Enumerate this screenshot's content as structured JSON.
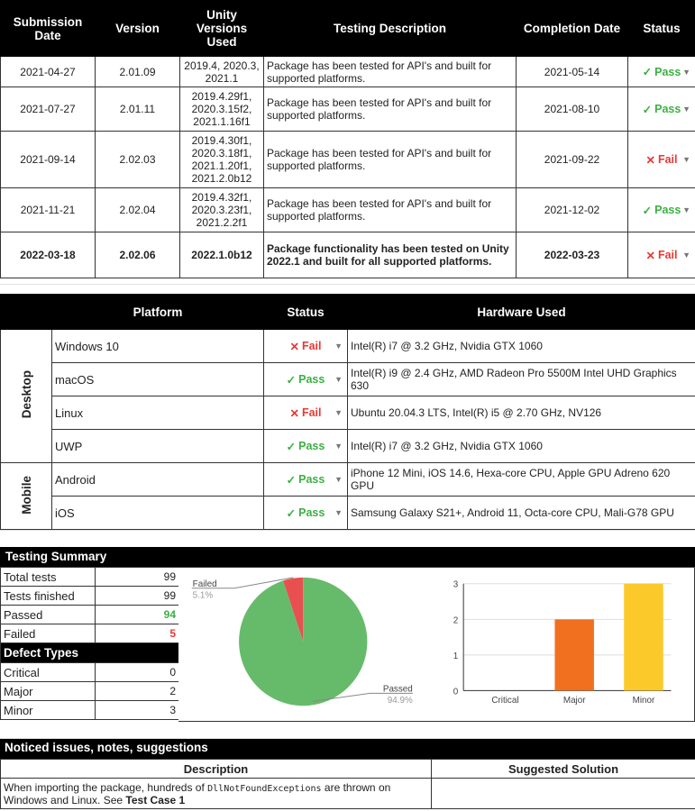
{
  "versions": {
    "headers": [
      "Submission Date",
      "Version",
      "Unity Versions Used",
      "Testing Description",
      "Completion Date",
      "Status"
    ],
    "rows": [
      {
        "submitted": "2021-04-27",
        "version": "2.01.09",
        "unity": "2019.4, 2020.3, 2021.1",
        "description": "Package has been tested for API's and built for supported platforms.",
        "completed": "2021-05-14",
        "status": "Pass"
      },
      {
        "submitted": "2021-07-27",
        "version": "2.01.11",
        "unity": "2019.4.29f1, 2020.3.15f2, 2021.1.16f1",
        "description": "Package has been tested for API's and built for supported platforms.",
        "completed": "2021-08-10",
        "status": "Pass"
      },
      {
        "submitted": "2021-09-14",
        "version": "2.02.03",
        "unity": "2019.4.30f1, 2020.3.18f1, 2021.1.20f1, 2021.2.0b12",
        "description": "Package has been tested for API's and built for supported platforms.",
        "completed": "2021-09-22",
        "status": "Fail"
      },
      {
        "submitted": "2021-11-21",
        "version": "2.02.04",
        "unity": "2019.4.32f1, 2020.3.23f1, 2021.2.2f1",
        "description": "Package has been tested for API's and built for supported platforms.",
        "completed": "2021-12-02",
        "status": "Pass"
      },
      {
        "submitted": "2022-03-18",
        "version": "2.02.06",
        "unity": "2022.1.0b12",
        "description": "Package functionality has been tested on Unity 2022.1 and built for all supported platforms.",
        "completed": "2022-03-23",
        "status": "Fail"
      }
    ]
  },
  "platforms": {
    "headers": [
      "Platform",
      "Status",
      "Hardware Used"
    ],
    "groups": [
      "Desktop",
      "Mobile"
    ],
    "rows": [
      {
        "name": "Windows 10",
        "status": "Fail",
        "hardware": "Intel(R) i7 @ 3.2 GHz, Nvidia GTX 1060"
      },
      {
        "name": "macOS",
        "status": "Pass",
        "hardware": "Intel(R) i9 @ 2.4 GHz, AMD Radeon Pro 5500M Intel UHD Graphics 630"
      },
      {
        "name": "Linux",
        "status": "Fail",
        "hardware": "Ubuntu 20.04.3 LTS, Intel(R) i5 @ 2.70 GHz, NV126"
      },
      {
        "name": "UWP",
        "status": "Pass",
        "hardware": "Intel(R) i7 @ 3.2 GHz, Nvidia GTX 1060"
      },
      {
        "name": "Android",
        "status": "Pass",
        "hardware": "iPhone 12 Mini, iOS 14.6, Hexa-core CPU, Apple GPU Adreno 620 GPU"
      },
      {
        "name": "iOS",
        "status": "Pass",
        "hardware": "Samsung Galaxy S21+, Android 11, Octa-core CPU, Mali-G78 GPU"
      }
    ]
  },
  "summary": {
    "title": "Testing Summary",
    "rows": [
      {
        "label": "Total tests",
        "value": "99"
      },
      {
        "label": "Tests finished",
        "value": "99"
      },
      {
        "label": "Passed",
        "value": "94"
      },
      {
        "label": "Failed",
        "value": "5"
      }
    ],
    "defects_title": "Defect Types",
    "defects": [
      {
        "label": "Critical",
        "value": "0"
      },
      {
        "label": "Major",
        "value": "2"
      },
      {
        "label": "Minor",
        "value": "3"
      }
    ]
  },
  "chart_data": [
    {
      "type": "pie",
      "slices": [
        {
          "label": "Failed",
          "value": 5,
          "pct": "5.1%",
          "color": "#e85050"
        },
        {
          "label": "Passed",
          "value": 94,
          "pct": "94.9%",
          "color": "#66bb6a"
        }
      ]
    },
    {
      "type": "bar",
      "categories": [
        "Critical",
        "Major",
        "Minor"
      ],
      "values": [
        0,
        2,
        3
      ],
      "colors": [
        "#999999",
        "#f07020",
        "#fcc92a"
      ],
      "ylim": [
        0,
        3
      ],
      "yticks": [
        "0",
        "1",
        "2",
        "3"
      ],
      "grid": true
    }
  ],
  "notes": {
    "title": "Noticed issues, notes, suggestions",
    "headers": [
      "Description",
      "Suggested Solution"
    ],
    "row": {
      "pre": "When importing the package, hundreds of ",
      "code": "DllNotFoundExceptions",
      "post": " are thrown on Windows and Linux. See ",
      "link": "Test Case 1",
      "solution": ""
    }
  },
  "status_icons": {
    "Pass": "✓",
    "Fail": "✕"
  }
}
